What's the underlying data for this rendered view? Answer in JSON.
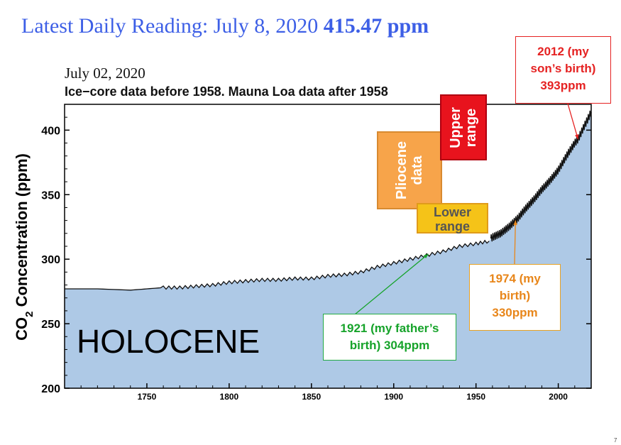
{
  "headline": {
    "text": "Latest Daily Reading: July 8, 2020",
    "value": "415.47 ppm"
  },
  "date_label": "July 02, 2020",
  "page_number": "7",
  "colors": {
    "headline": "#3d5fe6",
    "fill": "#aec9e6",
    "line": "#111111",
    "annotation_2012": "#e52222",
    "annotation_1974": "#e8861a",
    "annotation_1921": "#16a32a"
  },
  "chart_data": {
    "type": "area",
    "title": "Ice−core data before 1958. Mauna Loa data after 1958",
    "ylabel_main": "CO",
    "ylabel_sub": "2",
    "ylabel_rest": " Concentration (ppm)",
    "xlabel": "",
    "xlim": [
      1700,
      2020
    ],
    "ylim": [
      200,
      420
    ],
    "x_ticks": [
      1750,
      1800,
      1850,
      1900,
      1950,
      2000
    ],
    "y_ticks": [
      200,
      250,
      300,
      350,
      400
    ],
    "region_label": "HOLOCENE",
    "ice_core_series": {
      "x": [
        1700,
        1720,
        1740,
        1750,
        1760,
        1770,
        1780,
        1790,
        1800,
        1810,
        1820,
        1830,
        1840,
        1850,
        1860,
        1870,
        1880,
        1890,
        1900,
        1910,
        1920,
        1930,
        1940,
        1950,
        1958
      ],
      "y": [
        277,
        277,
        276,
        277,
        278,
        278,
        279,
        280,
        282,
        283,
        284,
        284,
        285,
        285,
        287,
        288,
        290,
        294,
        297,
        300,
        303,
        306,
        310,
        312,
        314
      ]
    },
    "mauna_loa_series": {
      "x": [
        1959,
        1960,
        1965,
        1970,
        1974,
        1975,
        1980,
        1985,
        1990,
        1995,
        2000,
        2005,
        2010,
        2012,
        2015,
        2020
      ],
      "y": [
        316,
        317,
        320,
        325,
        330,
        331,
        339,
        346,
        354,
        361,
        369,
        380,
        390,
        393,
        401,
        414
      ]
    },
    "boxes": {
      "pliocene": "Pliocene\ndata",
      "upper": "Upper\nrange",
      "lower": "Lower\nrange"
    },
    "annotations": [
      {
        "text": [
          "2012 (my",
          "son’s birth)",
          "393ppm"
        ],
        "x": 2012,
        "y": 393
      },
      {
        "text": [
          "1974 (my",
          "birth)",
          "330ppm"
        ],
        "x": 1974,
        "y": 330
      },
      {
        "text": [
          "1921 (my father’s",
          "birth) 304ppm"
        ],
        "x": 1921,
        "y": 304
      }
    ]
  }
}
